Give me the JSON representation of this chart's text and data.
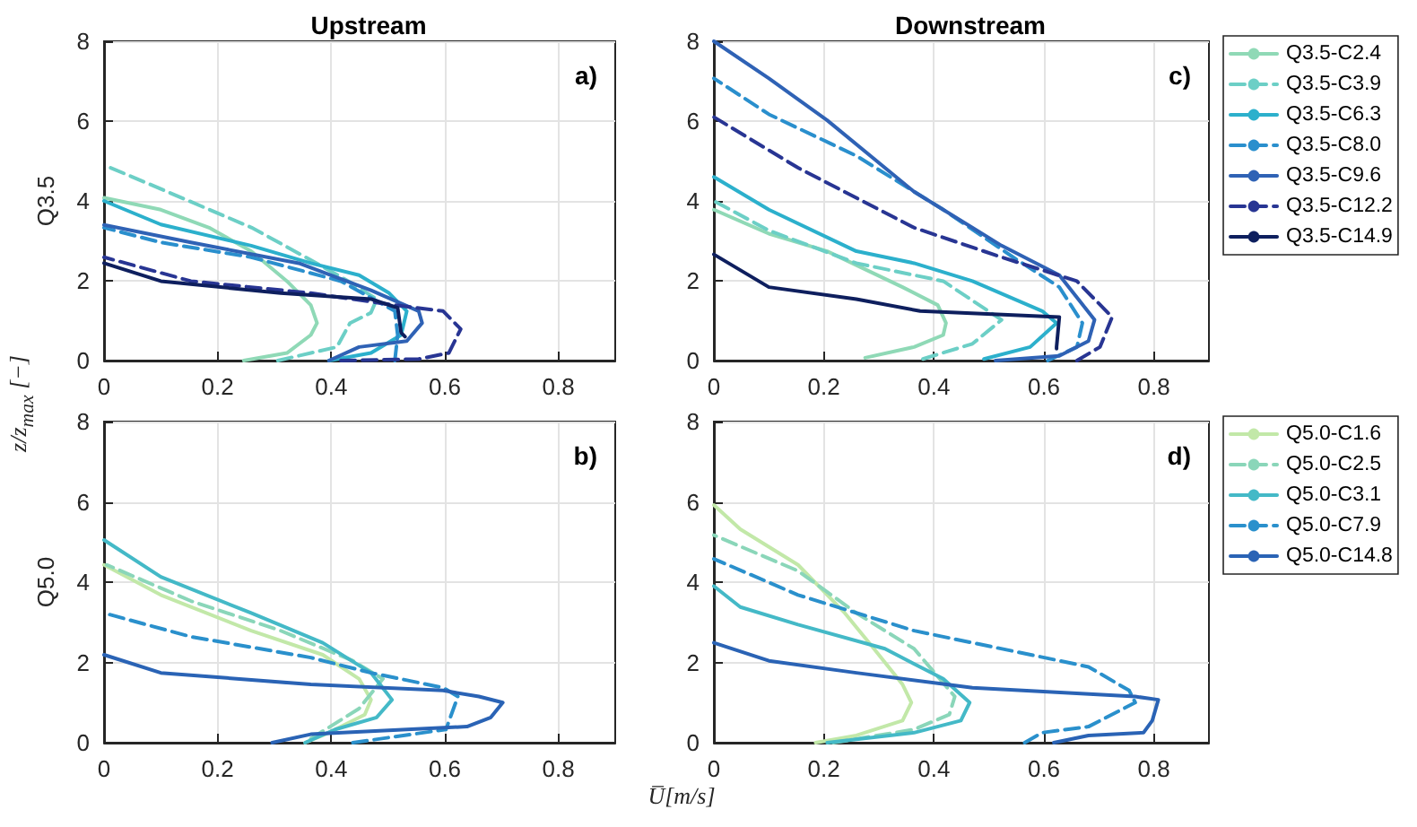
{
  "chart_data": [
    {
      "type": "line",
      "title": "Upstream",
      "ylabel": "Q3.5",
      "annotations": [
        "a)",
        "z/z$_{max}$ [−]"
      ],
      "xlim": [
        0,
        0.9
      ],
      "xticks": [
        0,
        0.2,
        0.4,
        0.6,
        0.8
      ],
      "ylim": [
        0,
        8
      ],
      "yticks": [
        0,
        2,
        4,
        6,
        8
      ],
      "grid": true,
      "marker": "none",
      "series": [
        {
          "color": "#8fd9b6",
          "line_style": "solid",
          "x": [
            0.246,
            0.322,
            0.364,
            0.375,
            0.364,
            0.322,
            0.259,
            0.185,
            0.1,
            0
          ],
          "values": [
            0,
            0.19,
            0.64,
            0.94,
            1.39,
            1.99,
            2.74,
            3.33,
            3.78,
            4.08
          ]
        },
        {
          "color": "#6ccfc6",
          "line_style": "dashed",
          "x": [
            0.306,
            0.41,
            0.433,
            0.47,
            0.48,
            0.43,
            0.355,
            0.26,
            0.1,
            0
          ],
          "values": [
            0,
            0.34,
            0.94,
            1.2,
            1.54,
            1.99,
            2.59,
            3.33,
            4.3,
            4.9
          ]
        },
        {
          "color": "#2cb0cc",
          "line_style": "solid",
          "x": [
            0.396,
            0.47,
            0.523,
            0.533,
            0.502,
            0.449,
            0.364,
            0.259,
            0.1,
            0
          ],
          "values": [
            0,
            0.19,
            0.64,
            1.24,
            1.69,
            2.14,
            2.44,
            2.88,
            3.41,
            4.0
          ]
        },
        {
          "color": "#2a8fcd",
          "line_style": "dashed",
          "x": [
            0.512,
            0.517,
            0.512,
            0.417,
            0.259,
            0.1,
            0
          ],
          "values": [
            0,
            0.64,
            1.24,
            1.99,
            2.59,
            2.96,
            3.33
          ]
        },
        {
          "color": "#2f62b5",
          "line_style": "solid",
          "x": [
            0.396,
            0.449,
            0.533,
            0.56,
            0.554,
            0.47,
            0.343,
            0.153,
            0
          ],
          "values": [
            0,
            0.34,
            0.49,
            0.94,
            1.24,
            1.76,
            2.44,
            2.96,
            3.4
          ]
        },
        {
          "color": "#283593",
          "line_style": "dashed",
          "x": [
            0.417,
            0.554,
            0.607,
            0.628,
            0.597,
            0.512,
            0.364,
            0.153,
            0
          ],
          "values": [
            0,
            0.04,
            0.19,
            0.79,
            1.24,
            1.39,
            1.69,
            1.99,
            2.59
          ]
        },
        {
          "color": "#0e1f5e",
          "line_style": "solid",
          "x": [
            0.53,
            0.523,
            0.517,
            0.47,
            0.311,
            0.1,
            0
          ],
          "values": [
            0.6,
            0.7,
            1.32,
            1.54,
            1.69,
            1.99,
            2.44
          ]
        }
      ]
    },
    {
      "type": "line",
      "title": "Downstream",
      "annotations": [
        "c)"
      ],
      "xlim": [
        0,
        0.9
      ],
      "xticks": [
        0,
        0.2,
        0.4,
        0.6,
        0.8
      ],
      "ylim": [
        0,
        8
      ],
      "yticks": [
        0,
        2,
        4,
        6,
        8
      ],
      "grid": true,
      "marker": "none",
      "legend": "right",
      "series": [
        {
          "name": "Q3.5-C2.4",
          "color": "#8fd9b6",
          "line_style": "solid",
          "x": [
            0.275,
            0.364,
            0.417,
            0.422,
            0.407,
            0.343,
            0.206,
            0.1,
            0
          ],
          "values": [
            0.07,
            0.34,
            0.64,
            0.94,
            1.39,
            1.84,
            2.74,
            3.18,
            3.78
          ]
        },
        {
          "name": "Q3.5-C3.9",
          "color": "#6ccfc6",
          "line_style": "dashed",
          "x": [
            0.38,
            0.47,
            0.523,
            0.417,
            0.259,
            0.1,
            0
          ],
          "values": [
            0.04,
            0.42,
            1.02,
            1.99,
            2.44,
            3.26,
            4.0
          ]
        },
        {
          "name": "Q3.5-C6.3",
          "color": "#2cb0cc",
          "line_style": "solid",
          "x": [
            0.491,
            0.575,
            0.623,
            0.597,
            0.47,
            0.364,
            0.259,
            0.1,
            0
          ],
          "values": [
            0.04,
            0.34,
            0.94,
            1.24,
            1.99,
            2.44,
            2.74,
            3.78,
            4.6
          ]
        },
        {
          "name": "Q3.5-C8.0",
          "color": "#2a8fcd",
          "line_style": "dashed",
          "x": [
            0.607,
            0.66,
            0.67,
            0.628,
            0.544,
            0.417,
            0.259,
            0.1,
            0
          ],
          "values": [
            0,
            0.34,
            0.94,
            1.84,
            2.59,
            3.78,
            5.13,
            6.17,
            7.07
          ]
        },
        {
          "name": "Q3.5-C9.6",
          "color": "#2f62b5",
          "line_style": "solid",
          "x": [
            0.512,
            0.628,
            0.681,
            0.692,
            0.628,
            0.523,
            0.364,
            0.206,
            0.1,
            0
          ],
          "values": [
            0,
            0.12,
            0.49,
            1.02,
            2.14,
            2.88,
            4.23,
            6.02,
            7.07,
            8
          ]
        },
        {
          "name": "Q3.5-C12.2",
          "color": "#283593",
          "line_style": "dashed",
          "x": [
            0.66,
            0.702,
            0.724,
            0.66,
            0.523,
            0.364,
            0.153,
            0
          ],
          "values": [
            0,
            0.34,
            1.09,
            1.99,
            2.59,
            3.33,
            4.83,
            6.1
          ]
        },
        {
          "name": "Q3.5-C14.9",
          "color": "#0e1f5e",
          "line_style": "solid",
          "x": [
            0.623,
            0.623,
            0.628,
            0.375,
            0.259,
            0.1,
            0
          ],
          "values": [
            0.3,
            0.34,
            1.09,
            1.24,
            1.54,
            1.84,
            2.66
          ]
        }
      ]
    },
    {
      "type": "line",
      "ylabel": "Q5.0",
      "xlabel": "U̅[m/s]",
      "annotations": [
        "b)"
      ],
      "xlim": [
        0,
        0.9
      ],
      "xticks": [
        0,
        0.2,
        0.4,
        0.6,
        0.8
      ],
      "ylim": [
        0,
        8
      ],
      "yticks": [
        0,
        2,
        4,
        6,
        8
      ],
      "grid": true,
      "marker": "none",
      "series": [
        {
          "color": "#c2e8a8",
          "line_style": "solid",
          "x": [
            0.354,
            0.396,
            0.459,
            0.47,
            0.449,
            0.385,
            0.259,
            0.1,
            0
          ],
          "values": [
            0,
            0.25,
            0.7,
            1.07,
            1.59,
            2.19,
            2.79,
            3.68,
            4.43
          ]
        },
        {
          "color": "#8ad6b9",
          "line_style": "dashed",
          "x": [
            0.364,
            0.449,
            0.491,
            0.438,
            0.311,
            0.153,
            0.005
          ],
          "values": [
            0.1,
            0.85,
            1.59,
            2.04,
            2.79,
            3.53,
            4.43
          ]
        },
        {
          "color": "#44b9c7",
          "line_style": "solid",
          "x": [
            0.354,
            0.407,
            0.48,
            0.507,
            0.47,
            0.385,
            0.259,
            0.1,
            0
          ],
          "values": [
            0,
            0.33,
            0.63,
            1.07,
            1.74,
            2.49,
            3.23,
            4.13,
            5.05
          ]
        },
        {
          "color": "#2a90cc",
          "line_style": "dashed",
          "x": [
            0.438,
            0.602,
            0.623,
            0.597,
            0.47,
            0.364,
            0.153,
            0
          ],
          "values": [
            0,
            0.33,
            1.15,
            1.37,
            1.74,
            2.12,
            2.64,
            3.23
          ]
        },
        {
          "color": "#2a63b5",
          "line_style": "solid",
          "x": [
            0.296,
            0.364,
            0.639,
            0.681,
            0.702,
            0.66,
            0.597,
            0.364,
            0.1,
            0
          ],
          "values": [
            0,
            0.21,
            0.4,
            0.63,
            1.0,
            1.15,
            1.3,
            1.45,
            1.74,
            2.19
          ]
        }
      ]
    },
    {
      "type": "line",
      "annotations": [
        "d)"
      ],
      "xlim": [
        0,
        0.9
      ],
      "xticks": [
        0,
        0.2,
        0.4,
        0.6,
        0.8
      ],
      "ylim": [
        0,
        8
      ],
      "yticks": [
        0,
        2,
        4,
        6,
        8
      ],
      "grid": true,
      "marker": "none",
      "legend": "right",
      "series": [
        {
          "name": "Q5.0-C1.6",
          "color": "#c2e8a8",
          "line_style": "solid",
          "x": [
            0.185,
            0.259,
            0.343,
            0.359,
            0.343,
            0.291,
            0.238,
            0.153,
            0.048,
            0
          ],
          "values": [
            0,
            0.18,
            0.55,
            1.0,
            1.45,
            2.34,
            3.23,
            4.43,
            5.32,
            5.92
          ]
        },
        {
          "name": "Q5.0-C2.5",
          "color": "#8ad6b9",
          "line_style": "dashed",
          "x": [
            0.217,
            0.364,
            0.428,
            0.438,
            0.364,
            0.259,
            0.153,
            0
          ],
          "values": [
            0,
            0.33,
            0.7,
            1.15,
            2.34,
            3.23,
            4.28,
            5.17
          ]
        },
        {
          "name": "Q5.0-C3.1",
          "color": "#44b9c7",
          "line_style": "solid",
          "x": [
            0.206,
            0.364,
            0.449,
            0.465,
            0.417,
            0.311,
            0.153,
            0.048,
            0
          ],
          "values": [
            0,
            0.25,
            0.55,
            1.0,
            1.59,
            2.34,
            2.94,
            3.38,
            3.9
          ]
        },
        {
          "name": "Q5.0-C7.9",
          "color": "#2a90cc",
          "line_style": "dashed",
          "x": [
            0.565,
            0.597,
            0.681,
            0.766,
            0.755,
            0.681,
            0.576,
            0.364,
            0.153,
            0
          ],
          "values": [
            0,
            0.25,
            0.4,
            1.0,
            1.3,
            1.89,
            2.19,
            2.79,
            3.68,
            4.58
          ]
        },
        {
          "name": "Q5.0-C14.8",
          "color": "#2a63b5",
          "line_style": "solid",
          "x": [
            0.618,
            0.681,
            0.781,
            0.797,
            0.808,
            0.766,
            0.47,
            0.259,
            0.1,
            0
          ],
          "values": [
            0,
            0.18,
            0.25,
            0.55,
            1.07,
            1.15,
            1.37,
            1.74,
            2.04,
            2.49
          ]
        }
      ]
    }
  ]
}
